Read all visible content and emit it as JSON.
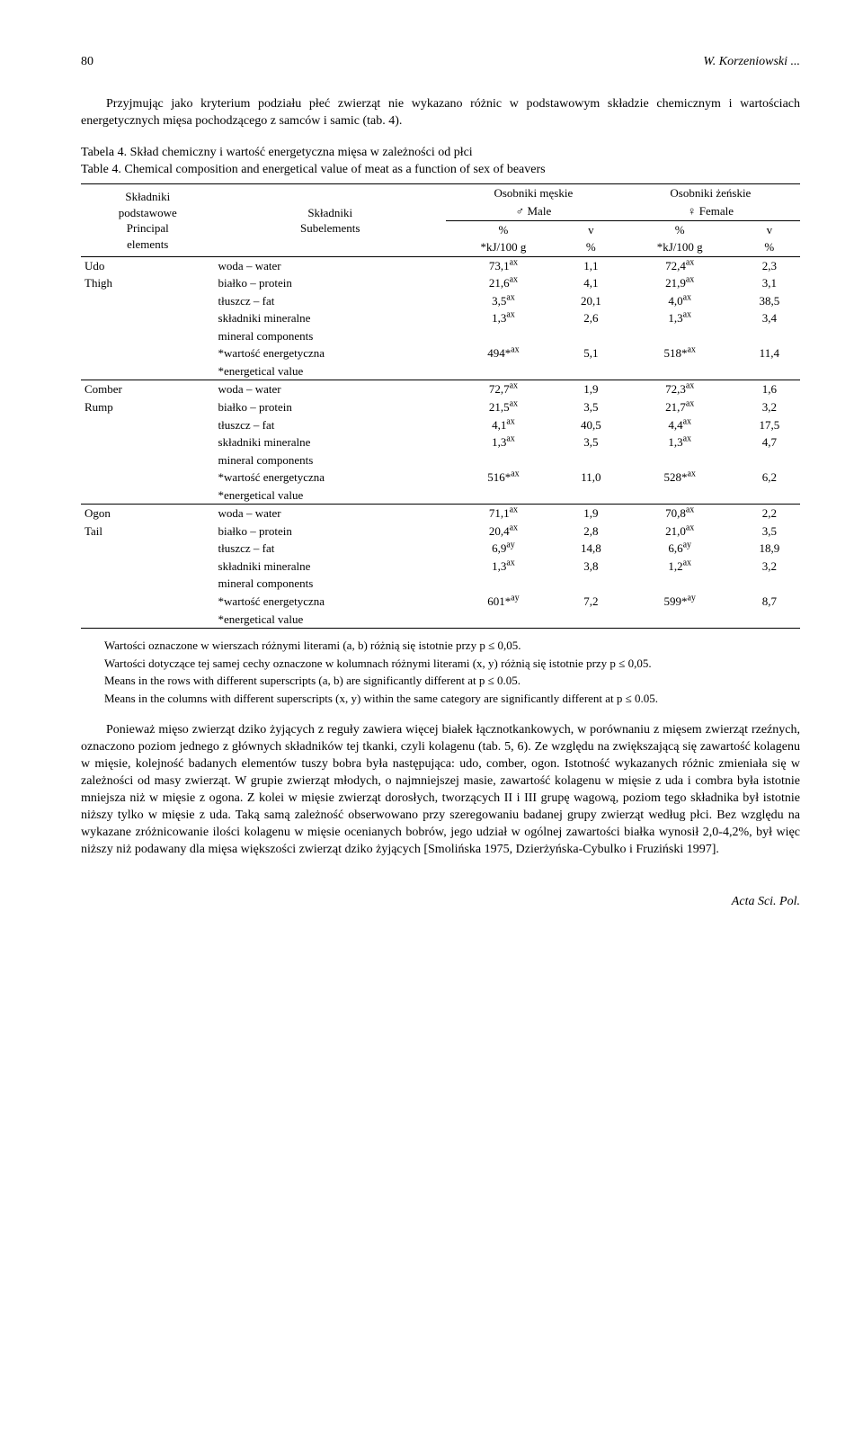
{
  "header": {
    "page_number": "80",
    "running_head": "W. Korzeniowski ..."
  },
  "intro": "Przyjmując jako kryterium podziału płeć zwierząt nie wykazano różnic w podstawowym składzie chemicznym i wartościach energetycznych mięsa pochodzącego z samców i samic (tab. 4).",
  "table_caption_pl": "Tabela 4. Skład chemiczny i wartość energetyczna mięsa w zależności od płci",
  "table_caption_en": "Table 4. Chemical composition and energetical value of meat as a function of sex of beavers",
  "table": {
    "col_labels": {
      "c1a": "Składniki",
      "c1b": "podstawowe",
      "c1c": "Principal",
      "c1d": "elements",
      "c2a": "Składniki",
      "c2b": "Subelements",
      "male_a": "Osobniki męskie",
      "male_b": "♂ Male",
      "female_a": "Osobniki żeńskie",
      "female_b": "♀ Female",
      "pct": "%",
      "unit": "*kJ/100 g",
      "v": "v",
      "vpct": "%"
    },
    "sections": [
      {
        "label_a": "Udo",
        "label_b": "Thigh",
        "rows": [
          {
            "name": "woda – water",
            "m_pct": "73,1",
            "m_sup": "ax",
            "m_v": "1,1",
            "f_pct": "72,4",
            "f_sup": "ax",
            "f_v": "2,3"
          },
          {
            "name": "białko – protein",
            "m_pct": "21,6",
            "m_sup": "ax",
            "m_v": "4,1",
            "f_pct": "21,9",
            "f_sup": "ax",
            "f_v": "3,1"
          },
          {
            "name": "tłuszcz – fat",
            "m_pct": "3,5",
            "m_sup": "ax",
            "m_v": "20,1",
            "f_pct": "4,0",
            "f_sup": "ax",
            "f_v": "38,5"
          },
          {
            "name": "składniki mineralne",
            "m_pct": "1,3",
            "m_sup": "ax",
            "m_v": "2,6",
            "f_pct": "1,3",
            "f_sup": "ax",
            "f_v": "3,4"
          },
          {
            "name": "mineral components",
            "m_pct": "",
            "m_sup": "",
            "m_v": "",
            "f_pct": "",
            "f_sup": "",
            "f_v": ""
          },
          {
            "name": "*wartość energetyczna",
            "m_pct": "494*",
            "m_sup": "ax",
            "m_v": "5,1",
            "f_pct": "518*",
            "f_sup": "ax",
            "f_v": "11,4"
          },
          {
            "name": "*energetical value",
            "m_pct": "",
            "m_sup": "",
            "m_v": "",
            "f_pct": "",
            "f_sup": "",
            "f_v": ""
          }
        ]
      },
      {
        "label_a": "Comber",
        "label_b": "Rump",
        "rows": [
          {
            "name": "woda – water",
            "m_pct": "72,7",
            "m_sup": "ax",
            "m_v": "1,9",
            "f_pct": "72,3",
            "f_sup": "ax",
            "f_v": "1,6"
          },
          {
            "name": "białko – protein",
            "m_pct": "21,5",
            "m_sup": "ax",
            "m_v": "3,5",
            "f_pct": "21,7",
            "f_sup": "ax",
            "f_v": "3,2"
          },
          {
            "name": "tłuszcz – fat",
            "m_pct": "4,1",
            "m_sup": "ax",
            "m_v": "40,5",
            "f_pct": "4,4",
            "f_sup": "ax",
            "f_v": "17,5"
          },
          {
            "name": "składniki mineralne",
            "m_pct": "1,3",
            "m_sup": "ax",
            "m_v": "3,5",
            "f_pct": "1,3",
            "f_sup": "ax",
            "f_v": "4,7"
          },
          {
            "name": "mineral components",
            "m_pct": "",
            "m_sup": "",
            "m_v": "",
            "f_pct": "",
            "f_sup": "",
            "f_v": ""
          },
          {
            "name": "*wartość energetyczna",
            "m_pct": "516*",
            "m_sup": "ax",
            "m_v": "11,0",
            "f_pct": "528*",
            "f_sup": "ax",
            "f_v": "6,2"
          },
          {
            "name": "*energetical value",
            "m_pct": "",
            "m_sup": "",
            "m_v": "",
            "f_pct": "",
            "f_sup": "",
            "f_v": ""
          }
        ]
      },
      {
        "label_a": "Ogon",
        "label_b": "Tail",
        "rows": [
          {
            "name": "woda – water",
            "m_pct": "71,1",
            "m_sup": "ax",
            "m_v": "1,9",
            "f_pct": "70,8",
            "f_sup": "ax",
            "f_v": "2,2"
          },
          {
            "name": "białko – protein",
            "m_pct": "20,4",
            "m_sup": "ax",
            "m_v": "2,8",
            "f_pct": "21,0",
            "f_sup": "ax",
            "f_v": "3,5"
          },
          {
            "name": "tłuszcz – fat",
            "m_pct": "6,9",
            "m_sup": "ay",
            "m_v": "14,8",
            "f_pct": "6,6",
            "f_sup": "ay",
            "f_v": "18,9"
          },
          {
            "name": "składniki mineralne",
            "m_pct": "1,3",
            "m_sup": "ax",
            "m_v": "3,8",
            "f_pct": "1,2",
            "f_sup": "ax",
            "f_v": "3,2"
          },
          {
            "name": "mineral components",
            "m_pct": "",
            "m_sup": "",
            "m_v": "",
            "f_pct": "",
            "f_sup": "",
            "f_v": ""
          },
          {
            "name": "*wartość energetyczna",
            "m_pct": "601*",
            "m_sup": "ay",
            "m_v": "7,2",
            "f_pct": "599*",
            "f_sup": "ay",
            "f_v": "8,7"
          },
          {
            "name": "*energetical value",
            "m_pct": "",
            "m_sup": "",
            "m_v": "",
            "f_pct": "",
            "f_sup": "",
            "f_v": ""
          }
        ]
      }
    ]
  },
  "notes": {
    "n1": "Wartości oznaczone w wierszach różnymi literami (a, b) różnią się istotnie przy p ≤ 0,05.",
    "n2": "Wartości dotyczące tej samej cechy oznaczone w kolumnach różnymi literami (x, y) różnią się istotnie przy p ≤ 0,05.",
    "n3": "Means in the rows with different superscripts (a, b) are significantly different at p ≤ 0.05.",
    "n4": "Means in the columns with different superscripts (x, y) within the same category are significantly different at p ≤ 0.05."
  },
  "body": "Ponieważ mięso zwierząt dziko żyjących z reguły zawiera więcej białek łącznotkankowych, w porównaniu z mięsem zwierząt rzeźnych, oznaczono poziom jednego z głównych składników tej tkanki, czyli kolagenu (tab. 5, 6). Ze względu na zwiększającą się zawartość kolagenu w mięsie, kolejność badanych elementów tuszy bobra była następująca: udo, comber, ogon. Istotność wykazanych różnic zmieniała się w zależności od masy zwierząt. W grupie zwierząt młodych, o najmniejszej masie, zawartość kolagenu w mięsie z uda i combra była istotnie mniejsza niż w mięsie z ogona. Z kolei w mięsie zwierząt dorosłych, tworzących II i III grupę wagową, poziom tego składnika był istotnie niższy tylko w mięsie z uda. Taką samą zależność obserwowano przy szeregowaniu badanej grupy zwierząt według płci. Bez względu na wykazane zróżnicowanie ilości kolagenu w mięsie ocenianych bobrów, jego udział w ogólnej zawartości białka wynosił 2,0-4,2%, był więc niższy niż podawany dla mięsa większości zwierząt dziko żyjących [Smolińska 1975, Dzierżyńska-Cybulko i Fruziński 1997].",
  "footer": "Acta Sci. Pol."
}
